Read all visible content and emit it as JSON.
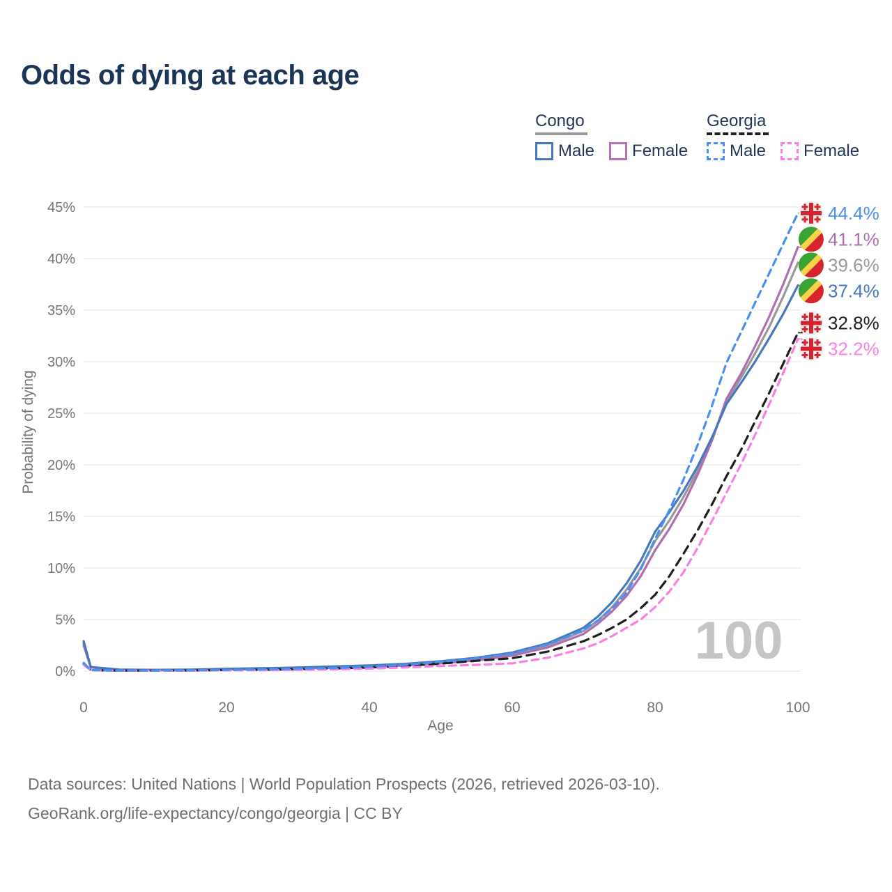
{
  "title": "Odds of dying at each age",
  "legend": {
    "groups": [
      {
        "label": "Congo",
        "underline_color": "#9a9a9a",
        "underline_dashed": false,
        "items": [
          {
            "label": "Male",
            "color": "#4678bd",
            "dashed": false
          },
          {
            "label": "Female",
            "color": "#b173b3",
            "dashed": false
          }
        ]
      },
      {
        "label": "Georgia",
        "underline_color": "#1e1e1e",
        "underline_dashed": true,
        "items": [
          {
            "label": "Male",
            "color": "#4a8ff0",
            "dashed": true
          },
          {
            "label": "Female",
            "color": "#f97fe3",
            "dashed": true
          }
        ]
      }
    ]
  },
  "chart_data": {
    "type": "line",
    "title": "Odds of dying at each age",
    "xlabel": "Age",
    "ylabel": "Probability of dying",
    "xlim": [
      0,
      100
    ],
    "ylim": [
      0,
      45
    ],
    "grid": "horizontal",
    "x_ticks": [
      0,
      20,
      40,
      60,
      80,
      100
    ],
    "x_tick_labels": [
      "0",
      "20",
      "40",
      "60",
      "80",
      "100"
    ],
    "y_tick_labels": [
      "0%",
      "5%",
      "10%",
      "15%",
      "20%",
      "25%",
      "30%",
      "35%",
      "40%",
      "45%"
    ],
    "hover_age": "100",
    "x": [
      0,
      1,
      5,
      10,
      15,
      20,
      25,
      30,
      35,
      40,
      45,
      50,
      55,
      60,
      65,
      70,
      72,
      74,
      76,
      78,
      80,
      82,
      84,
      86,
      88,
      90,
      92,
      94,
      96,
      98,
      100
    ],
    "series": [
      {
        "id": "congo-total",
        "name": "Congo — Both sexes",
        "country": "Congo",
        "sex": "both",
        "color": "#999999",
        "dash": "",
        "flag_icon": "congo-flag-icon",
        "end_label": "39.6%",
        "values": [
          2.7,
          0.38,
          0.14,
          0.11,
          0.13,
          0.19,
          0.24,
          0.3,
          0.38,
          0.48,
          0.62,
          0.85,
          1.17,
          1.65,
          2.5,
          3.9,
          4.9,
          6.2,
          7.9,
          10.0,
          12.6,
          14.6,
          16.9,
          19.5,
          22.6,
          26.1,
          28.4,
          30.8,
          33.4,
          36.4,
          39.6
        ]
      },
      {
        "id": "congo-female",
        "name": "Congo — Female",
        "country": "Congo",
        "sex": "female",
        "color": "#ad6fb0",
        "dash": "",
        "flag_icon": "congo-flag-icon",
        "end_label": "41.1%",
        "values": [
          2.5,
          0.35,
          0.13,
          0.1,
          0.12,
          0.16,
          0.2,
          0.25,
          0.32,
          0.42,
          0.55,
          0.75,
          1.05,
          1.5,
          2.3,
          3.6,
          4.6,
          5.8,
          7.3,
          9.2,
          11.7,
          13.8,
          16.2,
          19.1,
          22.4,
          26.4,
          28.8,
          31.5,
          34.4,
          37.6,
          41.1
        ]
      },
      {
        "id": "congo-male",
        "name": "Congo — Male",
        "country": "Congo",
        "sex": "male",
        "color": "#4678bd",
        "dash": "",
        "flag_icon": "congo-flag-icon",
        "end_label": "37.4%",
        "values": [
          2.9,
          0.4,
          0.15,
          0.12,
          0.15,
          0.22,
          0.28,
          0.35,
          0.45,
          0.55,
          0.7,
          0.95,
          1.3,
          1.8,
          2.7,
          4.2,
          5.3,
          6.7,
          8.5,
          10.7,
          13.5,
          15.4,
          17.5,
          19.9,
          22.7,
          25.9,
          27.9,
          30.0,
          32.3,
          34.7,
          37.4
        ]
      },
      {
        "id": "georgia-total",
        "name": "Georgia — Both sexes",
        "country": "Georgia",
        "sex": "both",
        "color": "#1e1e1e",
        "dash": "12 8",
        "flag_icon": "georgia-flag-icon",
        "end_label": "32.8%",
        "values": [
          0.7,
          0.09,
          0.05,
          0.05,
          0.07,
          0.1,
          0.13,
          0.18,
          0.25,
          0.35,
          0.5,
          0.73,
          1.0,
          1.25,
          1.9,
          2.9,
          3.5,
          4.2,
          5.0,
          6.1,
          7.4,
          9.2,
          11.4,
          13.7,
          16.2,
          18.9,
          21.4,
          24.2,
          27.0,
          29.9,
          32.8
        ]
      },
      {
        "id": "georgia-female",
        "name": "Georgia — Female",
        "country": "Georgia",
        "sex": "female",
        "color": "#f97fe3",
        "dash": "10 7",
        "flag_icon": "georgia-flag-icon",
        "end_label": "32.2%",
        "values": [
          0.6,
          0.08,
          0.04,
          0.04,
          0.05,
          0.07,
          0.09,
          0.12,
          0.17,
          0.24,
          0.35,
          0.5,
          0.6,
          0.75,
          1.3,
          2.2,
          2.7,
          3.4,
          4.2,
          5.0,
          6.2,
          7.7,
          9.6,
          12.0,
          14.6,
          17.3,
          20.0,
          22.9,
          25.9,
          29.0,
          32.2
        ]
      },
      {
        "id": "georgia-male",
        "name": "Georgia — Male",
        "country": "Georgia",
        "sex": "male",
        "color": "#4a8ff0",
        "dash": "10 7",
        "flag_icon": "georgia-flag-icon",
        "end_label": "44.4%",
        "values": [
          0.8,
          0.1,
          0.05,
          0.05,
          0.08,
          0.12,
          0.17,
          0.23,
          0.3,
          0.42,
          0.6,
          0.9,
          1.25,
          1.7,
          2.6,
          4.0,
          4.9,
          6.1,
          7.6,
          9.9,
          12.8,
          15.6,
          18.6,
          22.0,
          25.8,
          29.9,
          32.8,
          35.7,
          38.6,
          41.5,
          44.4
        ]
      }
    ],
    "flag_colors": {
      "congo_green": "#3aa335",
      "congo_yellow": "#f7d348",
      "congo_red": "#d7242c",
      "georgia_bg": "#f1f1f1",
      "georgia_red": "#d8232e"
    }
  },
  "footer": {
    "line1": "Data sources: United Nations | World Population Prospects (2026, retrieved 2026-03-10).",
    "line2": "GeoRank.org/life-expectancy/congo/georgia | CC BY"
  }
}
